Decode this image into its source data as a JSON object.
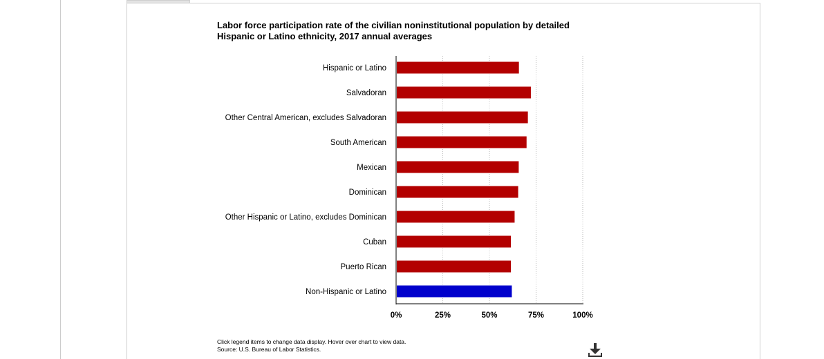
{
  "chart": {
    "title": "Labor force participation rate of the civilian noninstitutional population by detailed Hispanic or Latino ethnicity, 2017 annual averages",
    "note": "Click legend items to change data display. Hover over chart to view data.",
    "source": "Source: U.S. Bureau of Labor Statistics.",
    "download_icon": "download-icon"
  },
  "colors": {
    "hispanic": "#b30000",
    "non_hispanic": "#0000cc",
    "axis": "#000000",
    "grid": "#bbbbbb"
  },
  "chart_data": {
    "type": "bar",
    "orientation": "horizontal",
    "title": "Labor force participation rate of the civilian noninstitutional population by detailed Hispanic or Latino ethnicity, 2017 annual averages",
    "xlabel": "",
    "ylabel": "",
    "xlim": [
      0,
      100
    ],
    "ticks": [
      "0%",
      "25%",
      "50%",
      "75%",
      "100%"
    ],
    "tick_values": [
      0,
      25,
      50,
      75,
      100
    ],
    "grid": "vertical dotted",
    "categories": [
      "Hispanic or Latino",
      "Salvadoran",
      "Other Central American, excludes Salvadoran",
      "South American",
      "Mexican",
      "Dominican",
      "Other Hispanic or Latino, excludes Dominican",
      "Cuban",
      "Puerto Rican",
      "Non-Hispanic or Latino"
    ],
    "values": [
      65.8,
      72.2,
      70.6,
      69.9,
      65.7,
      65.4,
      63.5,
      61.5,
      61.5,
      62.0
    ],
    "bar_colors": [
      "#b30000",
      "#b30000",
      "#b30000",
      "#b30000",
      "#b30000",
      "#b30000",
      "#b30000",
      "#b30000",
      "#b30000",
      "#0000cc"
    ]
  }
}
